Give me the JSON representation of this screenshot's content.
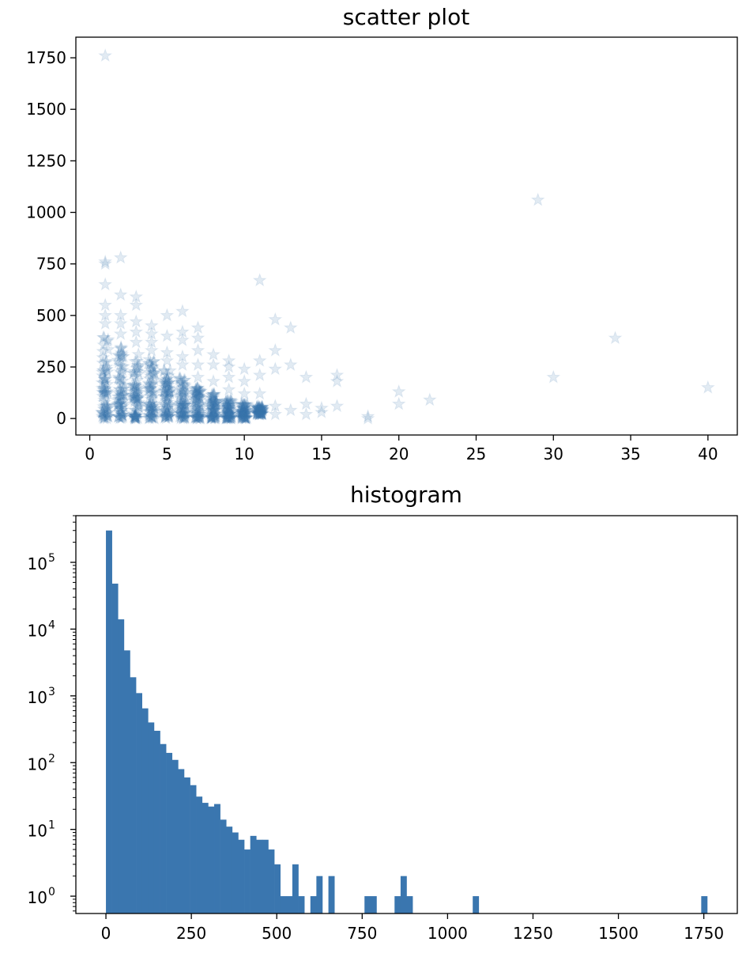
{
  "chart_data": [
    {
      "type": "scatter",
      "title": "scatter plot",
      "xlabel": "",
      "ylabel": "",
      "xlim": [
        -0.9,
        41.9
      ],
      "ylim": [
        -80,
        1850
      ],
      "xticks": [
        0,
        5,
        10,
        15,
        20,
        25,
        30,
        35,
        40
      ],
      "yticks": [
        0,
        250,
        500,
        750,
        1000,
        1250,
        1500,
        1750
      ],
      "xtick_labels": [
        "0",
        "5",
        "10",
        "15",
        "20",
        "25",
        "30",
        "35",
        "40"
      ],
      "ytick_labels": [
        "0",
        "250",
        "500",
        "750",
        "1000",
        "1250",
        "1500",
        "1750"
      ],
      "marker": "star",
      "color": "#3a76af",
      "alpha": 0.15,
      "grid": false,
      "columns": [
        {
          "x": 1,
          "low": 0,
          "high": 420,
          "extra": [
            460,
            500,
            550,
            650,
            750,
            760,
            1760
          ]
        },
        {
          "x": 2,
          "low": 0,
          "high": 360,
          "extra": [
            410,
            460,
            500,
            600,
            780
          ]
        },
        {
          "x": 3,
          "low": 0,
          "high": 330,
          "extra": [
            370,
            420,
            470,
            550,
            590
          ]
        },
        {
          "x": 4,
          "low": 0,
          "high": 290,
          "extra": [
            330,
            370,
            410,
            450
          ]
        },
        {
          "x": 5,
          "low": 0,
          "high": 240,
          "extra": [
            280,
            320,
            400,
            500
          ]
        },
        {
          "x": 6,
          "low": 0,
          "high": 200,
          "extra": [
            260,
            300,
            380,
            420,
            520
          ]
        },
        {
          "x": 7,
          "low": 0,
          "high": 150,
          "extra": [
            200,
            260,
            330,
            390,
            440
          ]
        },
        {
          "x": 8,
          "low": 0,
          "high": 120,
          "extra": [
            180,
            260,
            310
          ]
        },
        {
          "x": 9,
          "low": 0,
          "high": 90,
          "extra": [
            140,
            200,
            250,
            280
          ]
        },
        {
          "x": 10,
          "low": 0,
          "high": 70,
          "extra": [
            120,
            180,
            240
          ]
        },
        {
          "x": 11,
          "low": 20,
          "high": 60,
          "extra": [
            120,
            210,
            280,
            670
          ]
        }
      ],
      "points": [
        {
          "x": 12,
          "y": 20
        },
        {
          "x": 12,
          "y": 60
        },
        {
          "x": 12,
          "y": 240
        },
        {
          "x": 12,
          "y": 330
        },
        {
          "x": 12,
          "y": 480
        },
        {
          "x": 13,
          "y": 40
        },
        {
          "x": 13,
          "y": 260
        },
        {
          "x": 13,
          "y": 440
        },
        {
          "x": 14,
          "y": 20
        },
        {
          "x": 14,
          "y": 70
        },
        {
          "x": 14,
          "y": 200
        },
        {
          "x": 15,
          "y": 30
        },
        {
          "x": 15,
          "y": 50
        },
        {
          "x": 16,
          "y": 60
        },
        {
          "x": 16,
          "y": 180
        },
        {
          "x": 16,
          "y": 210
        },
        {
          "x": 18,
          "y": 0
        },
        {
          "x": 18,
          "y": 10
        },
        {
          "x": 20,
          "y": 70
        },
        {
          "x": 20,
          "y": 130
        },
        {
          "x": 22,
          "y": 90
        },
        {
          "x": 29,
          "y": 1060
        },
        {
          "x": 30,
          "y": 200
        },
        {
          "x": 34,
          "y": 390
        },
        {
          "x": 40,
          "y": 150
        }
      ]
    },
    {
      "type": "bar",
      "title": "histogram",
      "xlabel": "",
      "ylabel": "",
      "yscale": "log",
      "xlim": [
        -88,
        1848
      ],
      "ylim": [
        0.55,
        500000
      ],
      "xticks": [
        0,
        250,
        500,
        750,
        1000,
        1250,
        1500,
        1750
      ],
      "xtick_labels": [
        "0",
        "250",
        "500",
        "750",
        "1000",
        "1250",
        "1500",
        "1750"
      ],
      "yticks": [
        1,
        10,
        100,
        1000,
        10000,
        100000
      ],
      "ytick_labels": [
        {
          "base": "10",
          "exp": "0"
        },
        {
          "base": "10",
          "exp": "1"
        },
        {
          "base": "10",
          "exp": "2"
        },
        {
          "base": "10",
          "exp": "3"
        },
        {
          "base": "10",
          "exp": "4"
        },
        {
          "base": "10",
          "exp": "5"
        }
      ],
      "bin_start": 0,
      "bin_width": 17.6,
      "color": "#3a76af",
      "grid": false,
      "counts": [
        300000,
        48000,
        14000,
        4800,
        1900,
        1100,
        650,
        400,
        300,
        190,
        140,
        110,
        80,
        60,
        46,
        31,
        25,
        22,
        24,
        14,
        11,
        9,
        7,
        5,
        8,
        7,
        7,
        5,
        3,
        1,
        1,
        3,
        1,
        0,
        1,
        2,
        0,
        2,
        0,
        0,
        0,
        0,
        0,
        1,
        1,
        0,
        0,
        0,
        1,
        2,
        1,
        0,
        0,
        0,
        0,
        0,
        0,
        0,
        0,
        0,
        0,
        1,
        0,
        0,
        0,
        0,
        0,
        0,
        0,
        0,
        0,
        0,
        0,
        0,
        0,
        0,
        0,
        0,
        0,
        0,
        0,
        0,
        0,
        0,
        0,
        0,
        0,
        0,
        0,
        0,
        0,
        0,
        0,
        0,
        0,
        0,
        0,
        0,
        0,
        1
      ]
    }
  ]
}
